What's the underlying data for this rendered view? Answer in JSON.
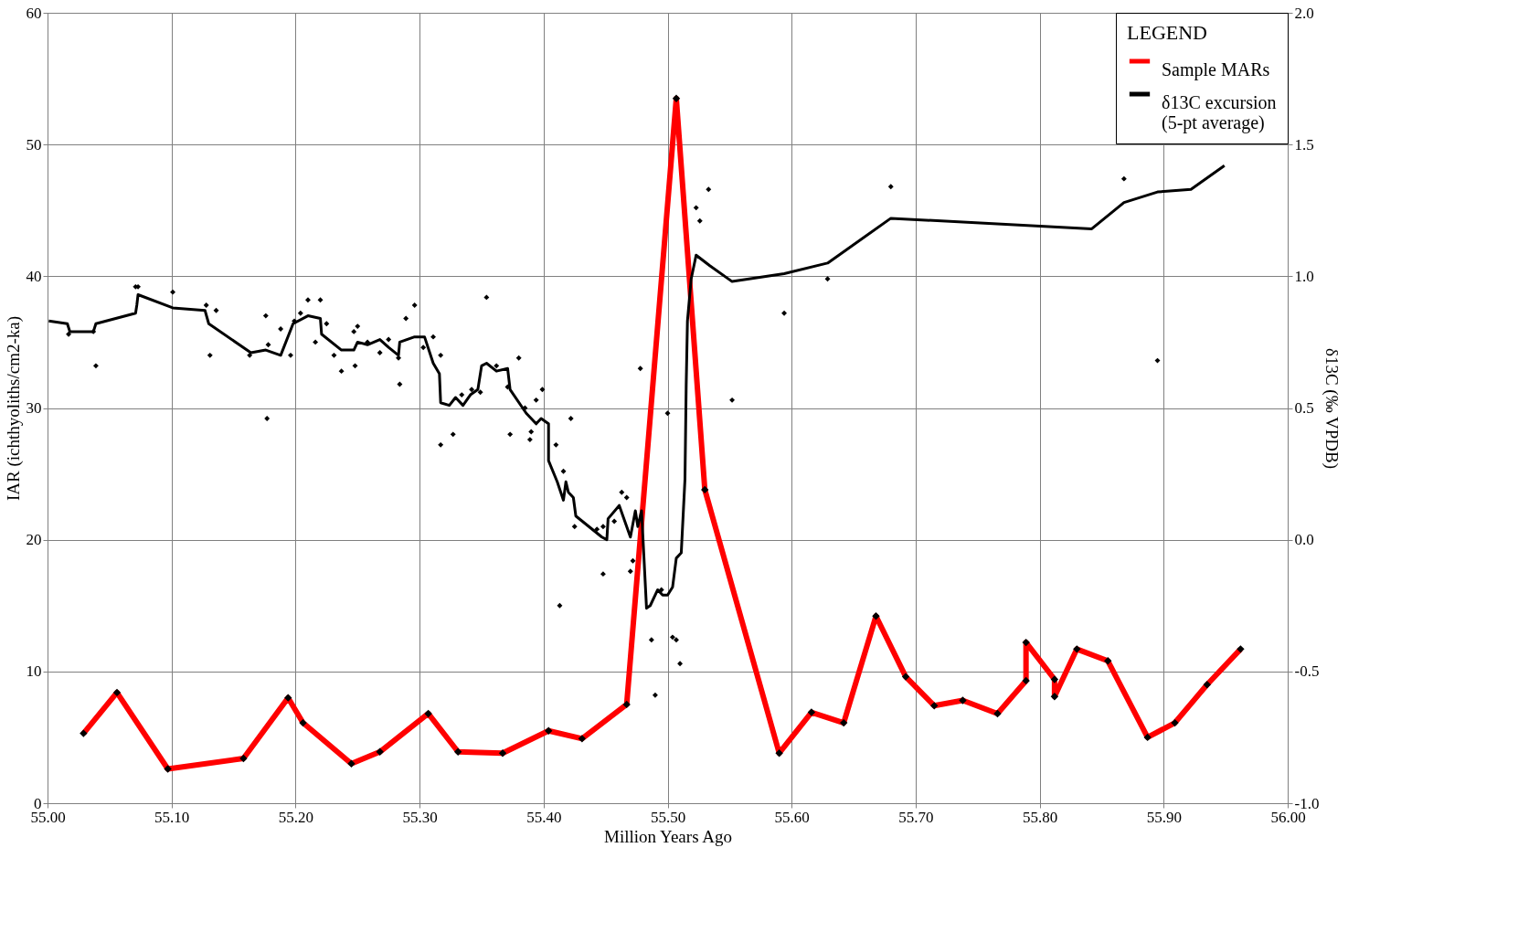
{
  "chart_data": {
    "type": "line",
    "xlabel": "Million Years Ago",
    "ylabel": "IAR (ichthyoliths/cm2-ka)",
    "y2label": "δ13C (‰ VPDB)",
    "legend_title": "LEGEND",
    "legend": "top right",
    "grid": true,
    "xlim": [
      55.0,
      56.0
    ],
    "xticks": [
      {
        "value": 55.0,
        "label": "55.00"
      },
      {
        "value": 55.1,
        "label": "55.10"
      },
      {
        "value": 55.2,
        "label": "55.20"
      },
      {
        "value": 55.3,
        "label": "55.30"
      },
      {
        "value": 55.4,
        "label": "55.40"
      },
      {
        "value": 55.5,
        "label": "55.50"
      },
      {
        "value": 55.6,
        "label": "55.60"
      },
      {
        "value": 55.7,
        "label": "55.70"
      },
      {
        "value": 55.8,
        "label": "55.80"
      },
      {
        "value": 55.9,
        "label": "55.90"
      },
      {
        "value": 56.0,
        "label": "56.00"
      }
    ],
    "ylim": [
      0,
      60
    ],
    "yticks": [
      0,
      10,
      20,
      30,
      40,
      50,
      60
    ],
    "y2lim": [
      -1.0,
      2.0
    ],
    "y2ticks": [
      {
        "value": -1.0,
        "label": "-1.0"
      },
      {
        "value": -0.5,
        "label": "-0.5"
      },
      {
        "value": 0.0,
        "label": "0.0"
      },
      {
        "value": 0.5,
        "label": "0.5"
      },
      {
        "value": 1.0,
        "label": "1.0"
      },
      {
        "value": 1.5,
        "label": "1.5"
      },
      {
        "value": 2.0,
        "label": "2.0"
      }
    ],
    "series": [
      {
        "name": "Sample MARs",
        "type": "line",
        "color": "#ff0000",
        "marker": "diamond",
        "x": [
          55.029,
          55.056,
          55.097,
          55.158,
          55.194,
          55.206,
          55.245,
          55.268,
          55.307,
          55.331,
          55.367,
          55.404,
          55.431,
          55.467,
          55.507,
          55.53,
          55.59,
          55.616,
          55.642,
          55.668,
          55.692,
          55.715,
          55.738,
          55.766,
          55.789,
          55.789,
          55.812,
          55.812,
          55.83,
          55.855,
          55.887,
          55.909,
          55.935,
          55.962
        ],
        "values": [
          5.3,
          8.4,
          2.6,
          3.4,
          8.0,
          6.1,
          3.0,
          3.9,
          6.8,
          3.9,
          3.8,
          5.5,
          4.9,
          7.5,
          53.5,
          23.8,
          3.8,
          6.9,
          6.1,
          14.2,
          9.6,
          7.4,
          7.8,
          6.8,
          9.3,
          12.2,
          9.4,
          8.1,
          11.7,
          10.8,
          5.0,
          6.1,
          9.0,
          11.7
        ]
      },
      {
        "name": "δ13C excursion\n(5-pt average)",
        "type": "line",
        "color": "#000000",
        "axis": "y2",
        "marker": "none",
        "x": [
          55.001,
          55.016,
          55.018,
          55.037,
          55.039,
          55.071,
          55.072,
          55.073,
          55.101,
          55.127,
          55.13,
          55.164,
          55.176,
          55.188,
          55.198,
          55.21,
          55.22,
          55.221,
          55.237,
          55.247,
          55.25,
          55.258,
          55.268,
          55.275,
          55.283,
          55.284,
          55.296,
          55.304,
          55.311,
          55.316,
          55.317,
          55.324,
          55.329,
          55.335,
          55.341,
          55.347,
          55.35,
          55.354,
          55.362,
          55.371,
          55.373,
          55.386,
          55.394,
          55.398,
          55.404,
          55.404,
          55.411,
          55.416,
          55.418,
          55.42,
          55.424,
          55.426,
          55.447,
          55.451,
          55.452,
          55.461,
          55.47,
          55.474,
          55.476,
          55.479,
          55.483,
          55.486,
          55.492,
          55.496,
          55.5,
          55.504,
          55.507,
          55.511,
          55.514,
          55.515,
          55.516,
          55.519,
          55.523,
          55.534,
          55.552,
          55.594,
          55.629,
          55.68,
          55.842,
          55.868,
          55.895,
          55.922,
          55.949
        ],
        "values": [
          0.83,
          0.82,
          0.79,
          0.79,
          0.82,
          0.86,
          0.89,
          0.93,
          0.88,
          0.87,
          0.82,
          0.71,
          0.72,
          0.7,
          0.82,
          0.85,
          0.84,
          0.78,
          0.72,
          0.72,
          0.75,
          0.74,
          0.76,
          0.73,
          0.7,
          0.75,
          0.77,
          0.77,
          0.67,
          0.63,
          0.52,
          0.51,
          0.54,
          0.51,
          0.55,
          0.57,
          0.66,
          0.67,
          0.64,
          0.65,
          0.57,
          0.48,
          0.44,
          0.46,
          0.44,
          0.3,
          0.22,
          0.15,
          0.22,
          0.18,
          0.16,
          0.09,
          0.01,
          0.0,
          0.08,
          0.13,
          0.01,
          0.11,
          0.05,
          0.11,
          -0.26,
          -0.25,
          -0.19,
          -0.21,
          -0.21,
          -0.18,
          -0.07,
          -0.05,
          0.23,
          0.59,
          0.83,
          0.99,
          1.08,
          1.04,
          0.98,
          1.01,
          1.05,
          1.22,
          1.18,
          1.28,
          1.32,
          1.33,
          1.42
        ]
      },
      {
        "type": "scatter",
        "color": "#000000",
        "axis": "y2",
        "marker": "diamond",
        "x": [
          55.017,
          55.039,
          55.037,
          55.071,
          55.073,
          55.101,
          55.128,
          55.136,
          55.131,
          55.163,
          55.176,
          55.178,
          55.177,
          55.188,
          55.196,
          55.199,
          55.204,
          55.21,
          55.22,
          55.216,
          55.225,
          55.231,
          55.237,
          55.248,
          55.247,
          55.25,
          55.258,
          55.268,
          55.275,
          55.283,
          55.284,
          55.289,
          55.296,
          55.303,
          55.311,
          55.317,
          55.317,
          55.327,
          55.334,
          55.342,
          55.349,
          55.354,
          55.362,
          55.371,
          55.373,
          55.38,
          55.385,
          55.39,
          55.389,
          55.394,
          55.399,
          55.422,
          55.41,
          55.416,
          55.413,
          55.425,
          55.443,
          55.448,
          55.448,
          55.457,
          55.463,
          55.467,
          55.478,
          55.472,
          55.47,
          55.487,
          55.495,
          55.5,
          55.504,
          55.507,
          55.51,
          55.49,
          55.552,
          55.533,
          55.523,
          55.526,
          55.594,
          55.629,
          55.68,
          55.868,
          55.895
        ],
        "values": [
          0.78,
          0.66,
          0.79,
          0.96,
          0.96,
          0.94,
          0.89,
          0.87,
          0.7,
          0.7,
          0.85,
          0.74,
          0.46,
          0.8,
          0.7,
          0.83,
          0.86,
          0.91,
          0.91,
          0.75,
          0.82,
          0.7,
          0.64,
          0.66,
          0.79,
          0.81,
          0.75,
          0.71,
          0.76,
          0.69,
          0.59,
          0.84,
          0.89,
          0.73,
          0.77,
          0.7,
          0.36,
          0.4,
          0.55,
          0.57,
          0.56,
          0.92,
          0.66,
          0.58,
          0.4,
          0.69,
          0.5,
          0.41,
          0.38,
          0.53,
          0.57,
          0.46,
          0.36,
          0.26,
          -0.25,
          0.05,
          0.04,
          0.05,
          -0.13,
          0.07,
          0.18,
          0.16,
          0.65,
          -0.08,
          -0.12,
          -0.38,
          -0.19,
          0.48,
          -0.37,
          -0.38,
          -0.47,
          -0.59,
          0.53,
          1.33,
          1.26,
          1.21,
          0.86,
          0.99,
          1.34,
          1.37,
          0.68
        ]
      }
    ]
  }
}
